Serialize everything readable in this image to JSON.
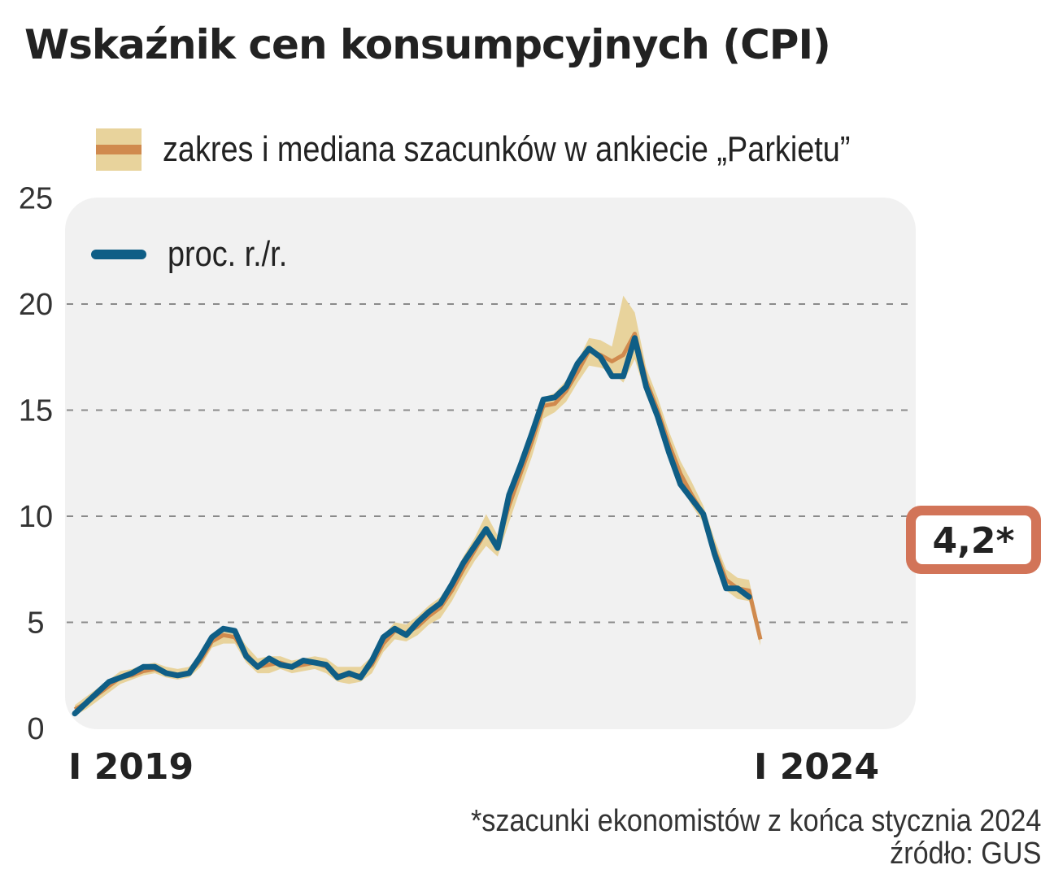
{
  "title": "Wskaźnik cen konsumpcyjnych (CPI)",
  "legend": {
    "range_label": "zakres i mediana szacunków w ankiecie „Parkietu”",
    "line_label": "proc. r./r."
  },
  "footnote": {
    "note": "*szacunki ekonomistów z końca stycznia 2024",
    "source": "źródło: GUS"
  },
  "colors": {
    "line": "#0f5e86",
    "range": "#e8d39c",
    "median": "#d08a4e",
    "callout_border": "#d27458",
    "panel": "#f1f1f1"
  },
  "chart_data": {
    "type": "line",
    "title": "Wskaźnik cen konsumpcyjnych (CPI)",
    "ylim": [
      0,
      25
    ],
    "y_ticks": [
      0,
      5,
      10,
      15,
      20,
      25
    ],
    "x_tick_labels": [
      {
        "index": 0,
        "label": "I 2019"
      },
      {
        "index": 60,
        "label": "I 2024"
      }
    ],
    "grid": "horizontal dashed",
    "series": [
      {
        "name": "proc. r./r.",
        "values": [
          0.7,
          1.2,
          1.7,
          2.2,
          2.4,
          2.6,
          2.9,
          2.9,
          2.6,
          2.5,
          2.6,
          3.4,
          4.3,
          4.7,
          4.6,
          3.4,
          2.9,
          3.3,
          3.0,
          2.9,
          3.2,
          3.1,
          3.0,
          2.4,
          2.6,
          2.4,
          3.2,
          4.3,
          4.7,
          4.4,
          5.0,
          5.5,
          5.9,
          6.8,
          7.8,
          8.6,
          9.4,
          8.5,
          11.0,
          12.4,
          13.9,
          15.5,
          15.6,
          16.1,
          17.2,
          17.9,
          17.5,
          16.6,
          16.6,
          18.4,
          16.1,
          14.7,
          13.0,
          11.5,
          10.8,
          10.1,
          8.2,
          6.6,
          6.6,
          6.2
        ]
      },
      {
        "name": "zakres i mediana szacunków w ankiecie „Parkietu”",
        "median": [
          0.9,
          1.2,
          1.6,
          2.0,
          2.4,
          2.5,
          2.7,
          2.8,
          2.6,
          2.5,
          2.6,
          3.2,
          4.1,
          4.4,
          4.3,
          3.5,
          2.9,
          3.0,
          3.1,
          2.9,
          3.0,
          3.1,
          2.9,
          2.5,
          2.5,
          2.5,
          3.0,
          4.0,
          4.6,
          4.5,
          4.8,
          5.3,
          5.7,
          6.5,
          7.5,
          8.4,
          9.3,
          8.7,
          10.5,
          12.0,
          13.5,
          15.2,
          15.3,
          15.9,
          16.8,
          17.8,
          17.6,
          17.3,
          17.6,
          18.6,
          16.4,
          15.0,
          13.4,
          12.0,
          11.0,
          10.1,
          8.4,
          7.0,
          6.6,
          6.5,
          4.2
        ],
        "low": [
          0.6,
          0.9,
          1.3,
          1.7,
          2.1,
          2.3,
          2.5,
          2.6,
          2.4,
          2.3,
          2.4,
          2.9,
          3.8,
          4.0,
          4.0,
          3.1,
          2.6,
          2.6,
          2.8,
          2.6,
          2.7,
          2.8,
          2.6,
          2.2,
          2.1,
          2.2,
          2.6,
          3.6,
          4.2,
          4.1,
          4.4,
          4.9,
          5.2,
          6.0,
          7.0,
          7.9,
          8.6,
          8.1,
          9.7,
          11.3,
          12.8,
          14.6,
          14.9,
          15.4,
          16.3,
          17.1,
          17.0,
          16.8,
          16.3,
          17.4,
          15.7,
          14.5,
          12.9,
          11.5,
          10.5,
          9.7,
          7.9,
          6.5,
          6.1,
          6.0,
          3.9
        ],
        "high": [
          1.1,
          1.5,
          1.9,
          2.3,
          2.7,
          2.8,
          3.0,
          3.1,
          2.9,
          2.8,
          2.9,
          3.5,
          4.4,
          4.8,
          4.7,
          3.9,
          3.3,
          3.4,
          3.4,
          3.2,
          3.3,
          3.4,
          3.3,
          2.9,
          2.9,
          2.9,
          3.4,
          4.4,
          5.0,
          4.9,
          5.3,
          5.8,
          6.2,
          7.0,
          8.1,
          9.0,
          10.1,
          9.1,
          11.3,
          12.6,
          14.2,
          15.6,
          15.8,
          16.4,
          17.3,
          18.4,
          18.3,
          18.0,
          20.4,
          19.6,
          17.0,
          15.6,
          14.0,
          12.6,
          11.6,
          10.5,
          8.9,
          7.5,
          7.1,
          7.0,
          4.5
        ]
      }
    ],
    "callout": {
      "index": 60,
      "label": "4,2*"
    }
  }
}
